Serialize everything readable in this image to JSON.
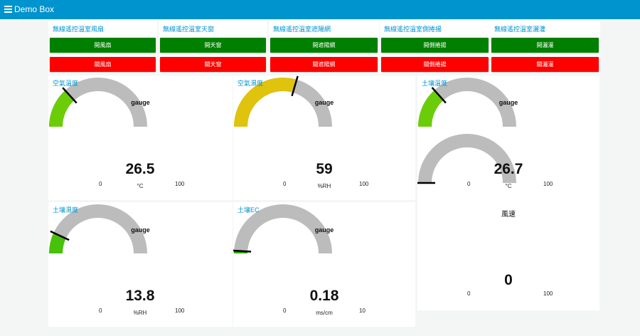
{
  "app": {
    "title": "Demo Box",
    "accent": "#0094ce"
  },
  "controls": [
    {
      "title": "無線遙控溫室風扇",
      "on_label": "開風扇",
      "off_label": "關風扇"
    },
    {
      "title": "無線遙控溫室天窗",
      "on_label": "開天窗",
      "off_label": "關天窗"
    },
    {
      "title": "無線遙控溫室遮陽網",
      "on_label": "開遮陽網",
      "off_label": "關遮陽網"
    },
    {
      "title": "無線遙控溫室側捲揚",
      "on_label": "開側捲揚",
      "off_label": "關側捲揚"
    },
    {
      "title": "無線遙控溫室灑灌",
      "on_label": "開灑灌",
      "off_label": "關灑灌"
    }
  ],
  "colors": {
    "on": "#008000",
    "off": "#ff0000",
    "track": "#bcbcbc"
  },
  "gauges": [
    {
      "panel_title": "空氣溫度",
      "name": "gauge",
      "value": "26.5",
      "value_num": 26.5,
      "min": "0",
      "max": "100",
      "unit": "°C",
      "color": "#6bcd08"
    },
    {
      "panel_title": "空氣濕度",
      "name": "gauge",
      "value": "59",
      "value_num": 59,
      "min": "0",
      "max": "100",
      "unit": "%RH",
      "color": "#e0c30c"
    },
    {
      "panel_title": "土壤溫度",
      "name": "gauge",
      "value": "26.7",
      "value_num": 26.7,
      "min": "0",
      "max": "100",
      "unit": "°C",
      "color": "#6bcd08"
    },
    {
      "panel_title": "土壤濕度",
      "name": "gauge",
      "value": "13.8",
      "value_num": 13.8,
      "min": "0",
      "max": "100",
      "unit": "%RH",
      "color": "#47c10a"
    },
    {
      "panel_title": "土壤EC",
      "name": "gauge",
      "value": "0.18",
      "value_num": 0.18,
      "min": "0",
      "max": "10",
      "unit": "ms/cm",
      "color": "#2ea80c"
    },
    {
      "panel_title": "",
      "name": "風速",
      "value": "0",
      "value_num": 0,
      "min": "0",
      "max": "100",
      "unit": "",
      "color": "#2ea80c"
    }
  ]
}
